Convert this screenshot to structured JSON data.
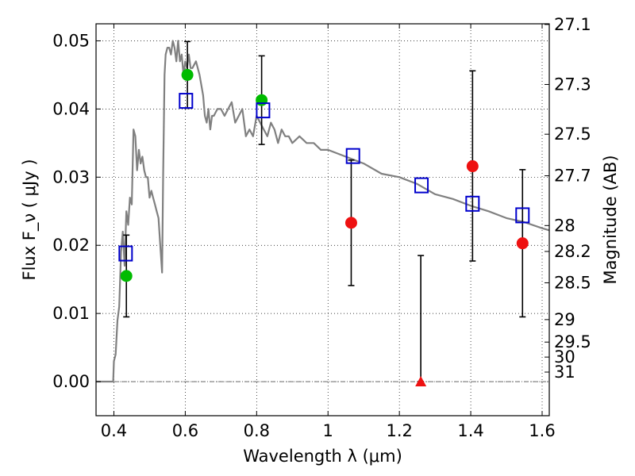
{
  "chart_data": {
    "type": "scatter",
    "xlabel": "Wavelength  λ (μm)",
    "ylabel": "Flux  F_ν  ( μJy )",
    "ylabel_right": "Magnitude (AB)",
    "xlim": [
      0.35,
      1.62
    ],
    "ylim": [
      -0.005,
      0.0525
    ],
    "grid": true,
    "grid_style": "dotted",
    "x_ticks": [
      0.4,
      0.6,
      0.8,
      1.0,
      1.2,
      1.4,
      1.6
    ],
    "x_tick_labels": [
      "0.4",
      "0.6",
      "0.8",
      "1",
      "1.2",
      "1.4",
      "1.6"
    ],
    "y_ticks": [
      0.0,
      0.01,
      0.02,
      0.03,
      0.04,
      0.05
    ],
    "y_tick_labels": [
      "0.00",
      "0.01",
      "0.02",
      "0.03",
      "0.04",
      "0.05"
    ],
    "right_axis_ticks": [
      {
        "label": "27.1",
        "flux": 0.0524
      },
      {
        "label": "27.3",
        "flux": 0.0436
      },
      {
        "label": "27.5",
        "flux": 0.0363
      },
      {
        "label": "27.7",
        "flux": 0.0302
      },
      {
        "label": "28",
        "flux": 0.0229
      },
      {
        "label": "28.2",
        "flux": 0.0191
      },
      {
        "label": "28.5",
        "flux": 0.0145
      },
      {
        "label": "29",
        "flux": 0.0091
      },
      {
        "label": "29.5",
        "flux": 0.0058
      },
      {
        "label": "30",
        "flux": 0.0036
      },
      {
        "label": "31",
        "flux": 0.0014
      }
    ],
    "colors": {
      "spectrum": "#808080",
      "green_points": "#00bb00",
      "red_points": "#ee1111",
      "model_squares": "#0000cc",
      "errorbars": "#000000",
      "zero_line": "#555555"
    },
    "series": [
      {
        "kind": "model_spectrum",
        "x": [
          0.35,
          0.398,
          0.4,
          0.405,
          0.41,
          0.415,
          0.42,
          0.425,
          0.43,
          0.435,
          0.44,
          0.445,
          0.45,
          0.455,
          0.46,
          0.465,
          0.47,
          0.475,
          0.48,
          0.485,
          0.49,
          0.495,
          0.5,
          0.505,
          0.51,
          0.515,
          0.52,
          0.525,
          0.53,
          0.535,
          0.538,
          0.542,
          0.545,
          0.55,
          0.555,
          0.56,
          0.565,
          0.57,
          0.575,
          0.58,
          0.585,
          0.59,
          0.595,
          0.6,
          0.605,
          0.61,
          0.615,
          0.62,
          0.63,
          0.64,
          0.65,
          0.655,
          0.66,
          0.665,
          0.67,
          0.675,
          0.68,
          0.69,
          0.7,
          0.71,
          0.72,
          0.73,
          0.74,
          0.75,
          0.76,
          0.77,
          0.78,
          0.79,
          0.8,
          0.81,
          0.82,
          0.83,
          0.84,
          0.85,
          0.86,
          0.87,
          0.88,
          0.89,
          0.9,
          0.92,
          0.94,
          0.96,
          0.98,
          1.0,
          1.05,
          1.1,
          1.15,
          1.2,
          1.25,
          1.3,
          1.35,
          1.4,
          1.45,
          1.5,
          1.55,
          1.6,
          1.62
        ],
        "y": [
          0.0,
          0.0,
          0.003,
          0.004,
          0.009,
          0.011,
          0.019,
          0.022,
          0.017,
          0.025,
          0.023,
          0.027,
          0.026,
          0.037,
          0.036,
          0.031,
          0.034,
          0.032,
          0.033,
          0.031,
          0.03,
          0.03,
          0.027,
          0.028,
          0.027,
          0.026,
          0.025,
          0.024,
          0.02,
          0.016,
          0.03,
          0.045,
          0.048,
          0.049,
          0.049,
          0.048,
          0.05,
          0.049,
          0.047,
          0.05,
          0.047,
          0.048,
          0.045,
          0.047,
          0.046,
          0.048,
          0.046,
          0.046,
          0.047,
          0.045,
          0.042,
          0.039,
          0.038,
          0.04,
          0.037,
          0.039,
          0.039,
          0.04,
          0.04,
          0.039,
          0.04,
          0.041,
          0.038,
          0.039,
          0.04,
          0.036,
          0.037,
          0.036,
          0.039,
          0.038,
          0.037,
          0.036,
          0.038,
          0.037,
          0.035,
          0.037,
          0.036,
          0.036,
          0.035,
          0.036,
          0.035,
          0.035,
          0.034,
          0.034,
          0.033,
          0.032,
          0.0305,
          0.03,
          0.029,
          0.0275,
          0.0268,
          0.0258,
          0.025,
          0.024,
          0.0234,
          0.0225,
          0.0222
        ]
      },
      {
        "kind": "measured_green",
        "points": [
          {
            "x": 0.435,
            "y": 0.0155
          },
          {
            "x": 0.606,
            "y": 0.045
          },
          {
            "x": 0.814,
            "y": 0.0413
          }
        ]
      },
      {
        "kind": "measured_red",
        "points": [
          {
            "x": 1.065,
            "y": 0.0233
          },
          {
            "x": 1.405,
            "y": 0.0316
          },
          {
            "x": 1.545,
            "y": 0.0203
          }
        ]
      },
      {
        "kind": "upper_limit_triangle",
        "points": [
          {
            "x": 1.26,
            "y": 0.0
          }
        ]
      },
      {
        "kind": "model_squares",
        "points": [
          {
            "x": 0.433,
            "y": 0.0188
          },
          {
            "x": 0.602,
            "y": 0.0412
          },
          {
            "x": 0.818,
            "y": 0.0398
          },
          {
            "x": 1.07,
            "y": 0.0331
          },
          {
            "x": 1.262,
            "y": 0.0288
          },
          {
            "x": 1.405,
            "y": 0.0261
          },
          {
            "x": 1.545,
            "y": 0.0244
          }
        ]
      },
      {
        "kind": "errorbars",
        "bars": [
          {
            "x": 0.435,
            "lo": 0.0095,
            "hi": 0.0215
          },
          {
            "x": 0.606,
            "lo": 0.0401,
            "hi": 0.0499
          },
          {
            "x": 0.814,
            "lo": 0.0348,
            "hi": 0.0478
          },
          {
            "x": 1.065,
            "lo": 0.0141,
            "hi": 0.0325
          },
          {
            "x": 1.26,
            "lo": 0.0,
            "hi": 0.0185
          },
          {
            "x": 1.405,
            "lo": 0.0177,
            "hi": 0.0456
          },
          {
            "x": 1.545,
            "lo": 0.0095,
            "hi": 0.0311
          }
        ]
      }
    ]
  }
}
